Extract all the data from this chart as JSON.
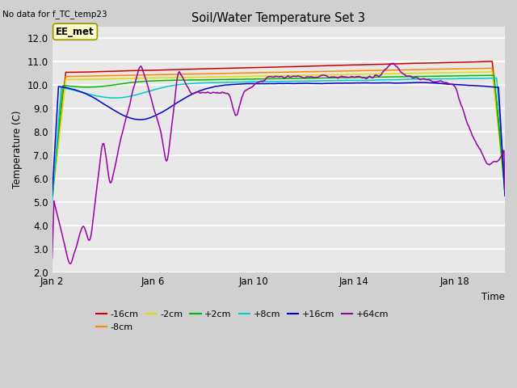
{
  "title": "Soil/Water Temperature Set 3",
  "subtitle": "No data for f_TC_temp23",
  "xlabel": "Time",
  "ylabel": "Temperature (C)",
  "ylim": [
    2.0,
    12.5
  ],
  "yticks": [
    2.0,
    3.0,
    4.0,
    5.0,
    6.0,
    7.0,
    8.0,
    9.0,
    10.0,
    11.0,
    12.0
  ],
  "xtick_days": [
    2,
    6,
    10,
    14,
    18
  ],
  "xtick_labels": [
    "Jan 2",
    "Jan 6",
    "Jan 10",
    "Jan 14",
    "Jan 18"
  ],
  "legend_label": "EE_met",
  "fig_bg_color": "#d0d0d0",
  "plot_bg_color": "#e8e8e8",
  "grid_color": "#ffffff",
  "series": [
    {
      "label": "-16cm",
      "color": "#cc0000"
    },
    {
      "label": "-8cm",
      "color": "#ff8800"
    },
    {
      "label": "-2cm",
      "color": "#dddd00"
    },
    {
      "label": "+2cm",
      "color": "#00bb00"
    },
    {
      "label": "+8cm",
      "color": "#00cccc"
    },
    {
      "label": "+16cm",
      "color": "#0000cc"
    },
    {
      "label": "+64cm",
      "color": "#9900aa"
    }
  ]
}
